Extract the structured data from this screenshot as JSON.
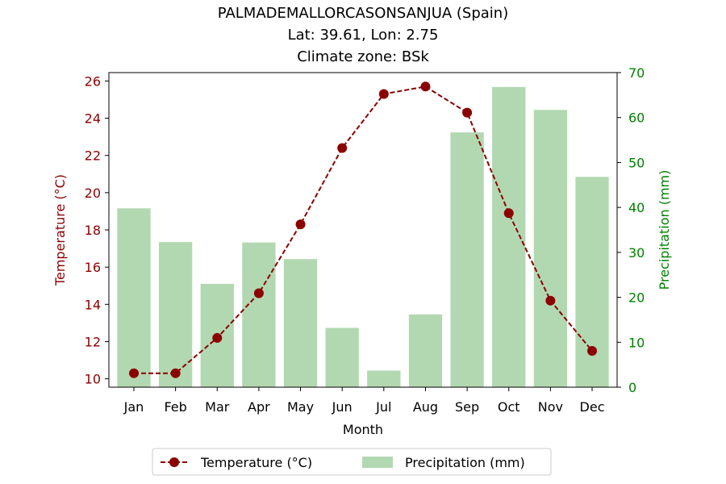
{
  "chart_data": {
    "type": "bar+line",
    "title_lines": [
      "PALMADEMALLORCASONSANJUA (Spain)",
      "Lat: 39.61, Lon: 2.75",
      "Climate zone: BSk"
    ],
    "xlabel": "Month",
    "ylabel_left": "Temperature (°C)",
    "ylabel_right": "Precipitation (mm)",
    "categories": [
      "Jan",
      "Feb",
      "Mar",
      "Apr",
      "May",
      "Jun",
      "Jul",
      "Aug",
      "Sep",
      "Oct",
      "Nov",
      "Dec"
    ],
    "left_axis": {
      "range": [
        9.55,
        26.45
      ],
      "ticks": [
        10,
        12,
        14,
        16,
        18,
        20,
        22,
        24,
        26
      ]
    },
    "right_axis": {
      "range": [
        0,
        70
      ],
      "ticks": [
        0,
        10,
        20,
        30,
        40,
        50,
        60,
        70
      ]
    },
    "series": [
      {
        "name": "Temperature (°C)",
        "kind": "line",
        "axis": "left",
        "values": [
          10.3,
          10.3,
          12.2,
          14.6,
          18.3,
          22.4,
          25.3,
          25.7,
          24.3,
          18.9,
          14.2,
          11.5
        ]
      },
      {
        "name": "Precipitation (mm)",
        "kind": "bar",
        "axis": "right",
        "values": [
          39.8,
          32.3,
          23.0,
          32.2,
          28.5,
          13.2,
          3.7,
          16.2,
          56.7,
          66.8,
          61.7,
          46.8
        ]
      }
    ],
    "legend_position": "bottom-center",
    "grid": false
  },
  "colors": {
    "temperature": "#8b0000",
    "precipitation": "#b2d8b2",
    "right_axis_text": "#008000",
    "axis": "#000000"
  }
}
